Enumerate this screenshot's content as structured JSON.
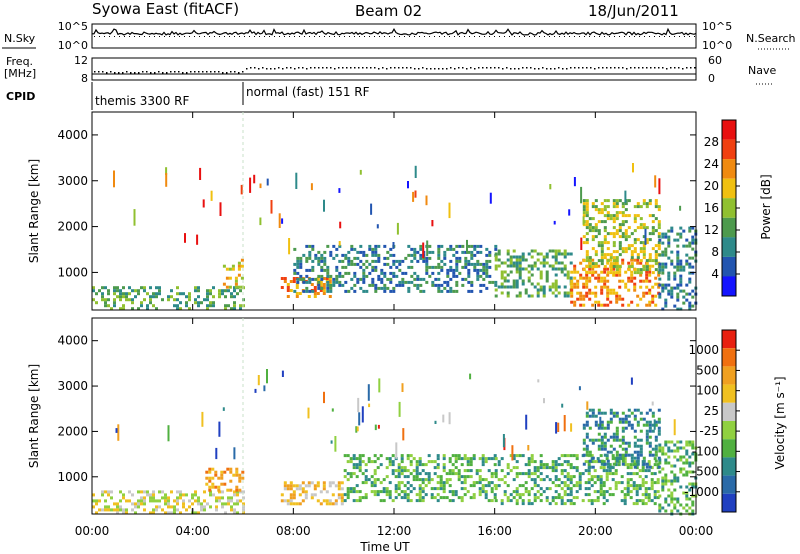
{
  "header": {
    "station": "Syowa East (fitACF)",
    "beam": "Beam 02",
    "date": "18/Jun/2011"
  },
  "top_panels": {
    "nsky_label": "N.Sky",
    "nsearch_label": "N.Search",
    "noise_ticks_left": [
      "10^5",
      "10^0"
    ],
    "noise_ticks_right": [
      "10^5",
      "10^0"
    ],
    "freq_label_1": "Freq.",
    "freq_label_2": "[MHz]",
    "freq_ticks_left": [
      "12",
      "8"
    ],
    "nave_label": "Nave",
    "nave_ticks_right": [
      "60",
      "0"
    ],
    "cpid_label": "CPID",
    "cpid_segments": [
      {
        "label": "themis 3300 RF",
        "start_hour": 0,
        "end_hour": 6
      },
      {
        "label": "normal (fast) 151 RF",
        "start_hour": 6,
        "end_hour": 24
      }
    ]
  },
  "axes": {
    "ylabel": "Slant Range [km]",
    "xlabel": "Time UT",
    "y_ticks": [
      "1000",
      "2000",
      "3000",
      "4000"
    ],
    "y_tick_values": [
      1000,
      2000,
      3000,
      4000
    ],
    "y_range_km": [
      180,
      4500
    ],
    "x_ticks": [
      "00:00",
      "04:00",
      "08:00",
      "12:00",
      "16:00",
      "20:00",
      "00:00"
    ],
    "x_tick_hours": [
      0,
      4,
      8,
      12,
      16,
      20,
      24
    ],
    "x_range_hours": [
      0,
      24
    ]
  },
  "power_colorbar": {
    "label": "Power [dB]",
    "ticks": [
      "4",
      "8",
      "12",
      "16",
      "20",
      "24",
      "28"
    ],
    "colors": [
      "#1414ff",
      "#2255b0",
      "#2e8a8a",
      "#4d9a4d",
      "#90c030",
      "#f0c010",
      "#f08a10",
      "#f04010",
      "#e81010"
    ]
  },
  "velocity_colorbar": {
    "label": "Velocity [m s⁻¹]",
    "ticks": [
      "1000",
      "500",
      "100",
      "25",
      "-25",
      "-100",
      "-500",
      "-1000"
    ],
    "colors": [
      "#2040c0",
      "#2a6aa8",
      "#2e8a8a",
      "#50b040",
      "#90d040",
      "#c8c8c8",
      "#f0c020",
      "#f0a020",
      "#f07010",
      "#e82010"
    ]
  },
  "chart_data": [
    {
      "type": "heatmap",
      "title": "Power",
      "ylabel": "Slant Range [km]",
      "xlabel": "Time UT",
      "xlim_hours": [
        0,
        24
      ],
      "ylim_km": [
        180,
        4500
      ],
      "colorbar_label": "Power [dB]",
      "colorbar_ticks": [
        4,
        8,
        12,
        16,
        20,
        24,
        28
      ],
      "regions": [
        {
          "t0": 0.0,
          "t1": 6.0,
          "r0": 180,
          "r1": 700,
          "level": 3
        },
        {
          "t0": 5.2,
          "t1": 6.0,
          "r0": 700,
          "r1": 1300,
          "level": 5
        },
        {
          "t0": 7.5,
          "t1": 9.5,
          "r0": 500,
          "r1": 900,
          "level": 6
        },
        {
          "t0": 8.0,
          "t1": 16.0,
          "r0": 600,
          "r1": 1600,
          "level": 2
        },
        {
          "t0": 16.0,
          "t1": 19.0,
          "r0": 500,
          "r1": 1500,
          "level": 3
        },
        {
          "t0": 19.0,
          "t1": 22.5,
          "r0": 300,
          "r1": 1300,
          "level": 6
        },
        {
          "t0": 19.5,
          "t1": 22.5,
          "r0": 1000,
          "r1": 2600,
          "level": 4
        },
        {
          "t0": 22.5,
          "t1": 24.0,
          "r0": 180,
          "r1": 2000,
          "level": 2
        }
      ]
    },
    {
      "type": "heatmap",
      "title": "Velocity",
      "ylabel": "Slant Range [km]",
      "xlabel": "Time UT",
      "xlim_hours": [
        0,
        24
      ],
      "ylim_km": [
        180,
        4500
      ],
      "colorbar_label": "Velocity [m s⁻¹]",
      "colorbar_ticks": [
        1000,
        500,
        100,
        25,
        -25,
        -100,
        -500,
        -1000
      ],
      "regions": [
        {
          "t0": 0.0,
          "t1": 6.0,
          "r0": 180,
          "r1": 700,
          "level": 5
        },
        {
          "t0": 4.5,
          "t1": 6.0,
          "r0": 700,
          "r1": 1200,
          "level": 7
        },
        {
          "t0": 7.5,
          "t1": 10.0,
          "r0": 400,
          "r1": 900,
          "level": 6
        },
        {
          "t0": 10.0,
          "t1": 16.0,
          "r0": 500,
          "r1": 1500,
          "level": 3
        },
        {
          "t0": 16.0,
          "t1": 22.5,
          "r0": 400,
          "r1": 1500,
          "level": 3
        },
        {
          "t0": 19.5,
          "t1": 22.5,
          "r0": 1200,
          "r1": 2500,
          "level": 2
        },
        {
          "t0": 22.5,
          "t1": 24.0,
          "r0": 180,
          "r1": 1800,
          "level": 3
        }
      ]
    }
  ]
}
